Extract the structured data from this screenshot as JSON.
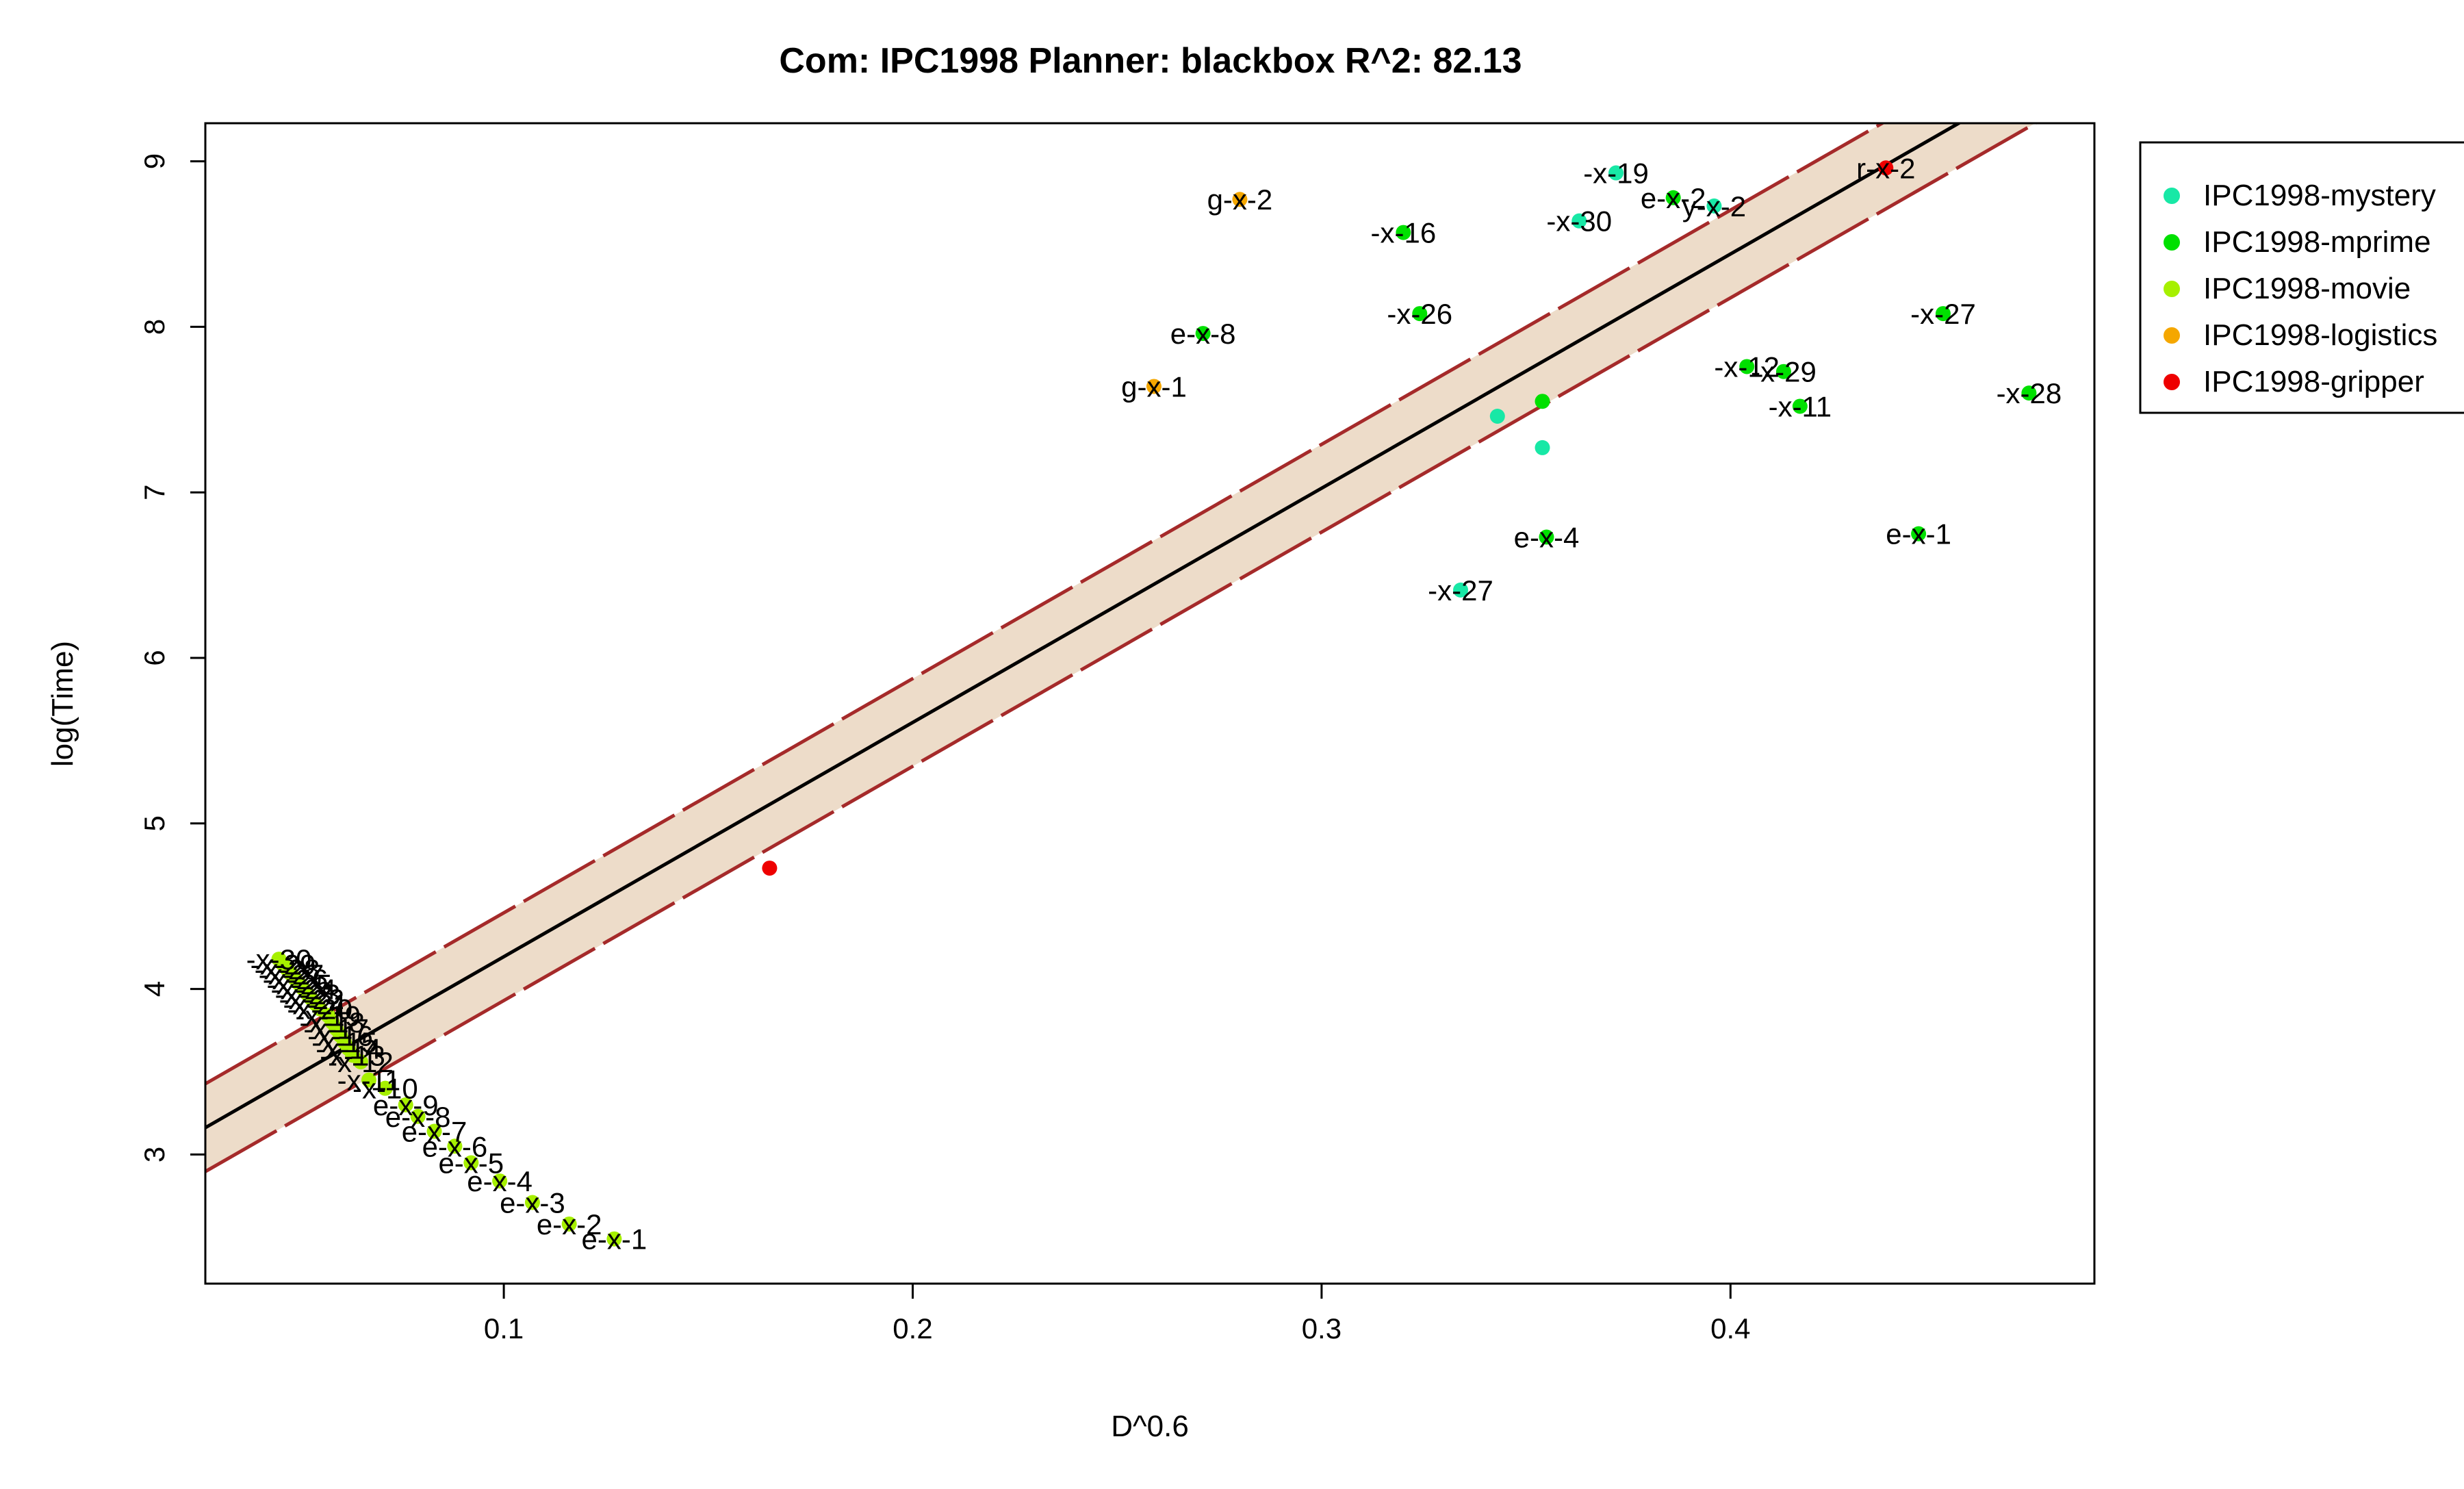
{
  "chart_data": {
    "type": "scatter",
    "title": "Com: IPC1998 Planner: blackbox R^2: 82.13",
    "xlabel": "D^0.6",
    "ylabel": "log(Time)",
    "xlim": [
      0.027,
      0.489
    ],
    "ylim": [
      2.22,
      9.23
    ],
    "x_ticks": [
      0.1,
      0.2,
      0.3,
      0.4
    ],
    "y_ticks": [
      3,
      4,
      5,
      6,
      7,
      8,
      9
    ],
    "x_tick_labels": [
      "0.1",
      "0.2",
      "0.3",
      "0.4"
    ],
    "y_tick_labels": [
      "3",
      "4",
      "5",
      "6",
      "7",
      "8",
      "9"
    ],
    "grid": false,
    "legend_position": "right",
    "fit": {
      "slope": 14.15,
      "intercept": 2.78,
      "band_upper_offset": 0.265,
      "band_lower_offset": -0.265,
      "line_color": "#000000",
      "band_fill": "#eddcc9",
      "band_edge_color": "#a52a2a"
    },
    "series": [
      {
        "name": "IPC1998-mystery",
        "color": "#18e8a6",
        "points": [
          {
            "x": 0.372,
            "y": 8.93,
            "label": "-x-19"
          },
          {
            "x": 0.363,
            "y": 8.64,
            "label": "-x-30"
          },
          {
            "x": 0.396,
            "y": 8.73,
            "label": "y-x-2"
          },
          {
            "x": 0.343,
            "y": 7.46,
            "label": ""
          },
          {
            "x": 0.354,
            "y": 7.27,
            "label": ""
          },
          {
            "x": 0.334,
            "y": 6.41,
            "label": "-x-27"
          }
        ]
      },
      {
        "name": "IPC1998-mprime",
        "color": "#00e000",
        "points": [
          {
            "x": 0.386,
            "y": 8.78,
            "label": "e-x-2"
          },
          {
            "x": 0.32,
            "y": 8.57,
            "label": "-x-16"
          },
          {
            "x": 0.324,
            "y": 8.08,
            "label": "-x-26"
          },
          {
            "x": 0.271,
            "y": 7.96,
            "label": "e-x-8"
          },
          {
            "x": 0.354,
            "y": 7.55,
            "label": ""
          },
          {
            "x": 0.452,
            "y": 8.08,
            "label": "-x-27"
          },
          {
            "x": 0.404,
            "y": 7.76,
            "label": "-x-12"
          },
          {
            "x": 0.413,
            "y": 7.73,
            "label": "-x-29"
          },
          {
            "x": 0.417,
            "y": 7.52,
            "label": "-x-11"
          },
          {
            "x": 0.473,
            "y": 7.6,
            "label": "-x-28"
          },
          {
            "x": 0.355,
            "y": 6.73,
            "label": "e-x-4"
          },
          {
            "x": 0.446,
            "y": 6.75,
            "label": "e-x-1"
          }
        ]
      },
      {
        "name": "IPC1998-movie",
        "color": "#a6f000",
        "points": [
          {
            "x": 0.045,
            "y": 4.18,
            "label": "-x-30"
          },
          {
            "x": 0.046,
            "y": 4.15,
            "label": "-x-29"
          },
          {
            "x": 0.047,
            "y": 4.12,
            "label": "-x-28"
          },
          {
            "x": 0.048,
            "y": 4.09,
            "label": "-x-27"
          },
          {
            "x": 0.049,
            "y": 4.06,
            "label": "-x-26"
          },
          {
            "x": 0.05,
            "y": 4.03,
            "label": "-x-25"
          },
          {
            "x": 0.051,
            "y": 4.0,
            "label": "-x-24"
          },
          {
            "x": 0.052,
            "y": 3.97,
            "label": "-x-23"
          },
          {
            "x": 0.053,
            "y": 3.94,
            "label": "-x-22"
          },
          {
            "x": 0.054,
            "y": 3.91,
            "label": "-x-21"
          },
          {
            "x": 0.055,
            "y": 3.88,
            "label": "-x-20"
          },
          {
            "x": 0.057,
            "y": 3.84,
            "label": "-x-19"
          },
          {
            "x": 0.058,
            "y": 3.8,
            "label": "-x-18"
          },
          {
            "x": 0.059,
            "y": 3.76,
            "label": "-x-17"
          },
          {
            "x": 0.06,
            "y": 3.72,
            "label": "-x-16"
          },
          {
            "x": 0.061,
            "y": 3.68,
            "label": "-x-15"
          },
          {
            "x": 0.062,
            "y": 3.64,
            "label": "-x-14"
          },
          {
            "x": 0.063,
            "y": 3.6,
            "label": "-x-13"
          },
          {
            "x": 0.065,
            "y": 3.56,
            "label": "-x-12"
          },
          {
            "x": 0.067,
            "y": 3.45,
            "label": "-x-11"
          },
          {
            "x": 0.071,
            "y": 3.4,
            "label": "-x-10"
          },
          {
            "x": 0.076,
            "y": 3.3,
            "label": "e-x-9"
          },
          {
            "x": 0.079,
            "y": 3.23,
            "label": "e-x-8"
          },
          {
            "x": 0.083,
            "y": 3.14,
            "label": "e-x-7"
          },
          {
            "x": 0.088,
            "y": 3.05,
            "label": "e-x-6"
          },
          {
            "x": 0.092,
            "y": 2.95,
            "label": "e-x-5"
          },
          {
            "x": 0.099,
            "y": 2.84,
            "label": "e-x-4"
          },
          {
            "x": 0.107,
            "y": 2.71,
            "label": "e-x-3"
          },
          {
            "x": 0.116,
            "y": 2.58,
            "label": "e-x-2"
          },
          {
            "x": 0.127,
            "y": 2.49,
            "label": "e-x-1"
          }
        ]
      },
      {
        "name": "IPC1998-logistics",
        "color": "#f5a700",
        "points": [
          {
            "x": 0.28,
            "y": 8.77,
            "label": "g-x-2"
          },
          {
            "x": 0.259,
            "y": 7.64,
            "label": "g-x-1"
          }
        ]
      },
      {
        "name": "IPC1998-gripper",
        "color": "#ee0000",
        "points": [
          {
            "x": 0.438,
            "y": 8.96,
            "label": "r-x-2"
          },
          {
            "x": 0.165,
            "y": 4.73,
            "label": ""
          }
        ]
      }
    ]
  }
}
